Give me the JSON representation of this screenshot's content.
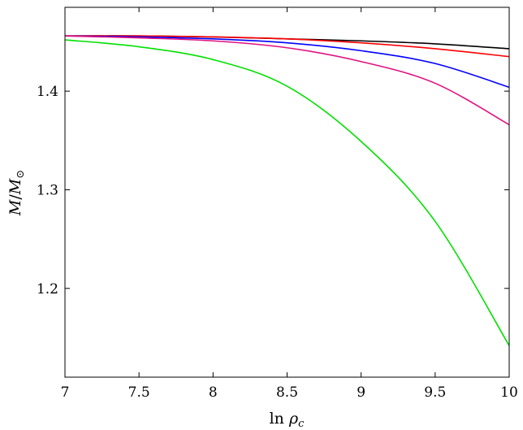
{
  "chart_data": {
    "type": "line",
    "xlabel": "ln ρ_c",
    "ylabel": "M/M_⊙",
    "xlim": [
      7,
      10
    ],
    "ylim": [
      1.11,
      1.485
    ],
    "xticks": [
      7,
      7.5,
      8,
      8.5,
      9,
      9.5,
      10
    ],
    "xtick_labels": [
      "7",
      "7.5",
      "8",
      "8.5",
      "9",
      "9.5",
      "10"
    ],
    "yticks": [
      1.2,
      1.3,
      1.4
    ],
    "ytick_labels": [
      "1.2",
      "1.3",
      "1.4"
    ],
    "grid": false,
    "legend": false,
    "x": [
      7.0,
      7.5,
      8.0,
      8.5,
      9.0,
      9.5,
      10.0
    ],
    "series": [
      {
        "color": "#000000",
        "values": [
          1.456,
          1.456,
          1.455,
          1.453,
          1.451,
          1.448,
          1.443
        ]
      },
      {
        "color": "#ff0000",
        "values": [
          1.456,
          1.456,
          1.455,
          1.453,
          1.449,
          1.443,
          1.435
        ]
      },
      {
        "color": "#0000ff",
        "values": [
          1.456,
          1.455,
          1.453,
          1.449,
          1.441,
          1.428,
          1.404
        ]
      },
      {
        "color": "#e0117f",
        "values": [
          1.456,
          1.454,
          1.451,
          1.444,
          1.43,
          1.408,
          1.366
        ]
      },
      {
        "color": "#00e000",
        "values": [
          1.452,
          1.445,
          1.432,
          1.405,
          1.349,
          1.268,
          1.142
        ]
      }
    ]
  }
}
